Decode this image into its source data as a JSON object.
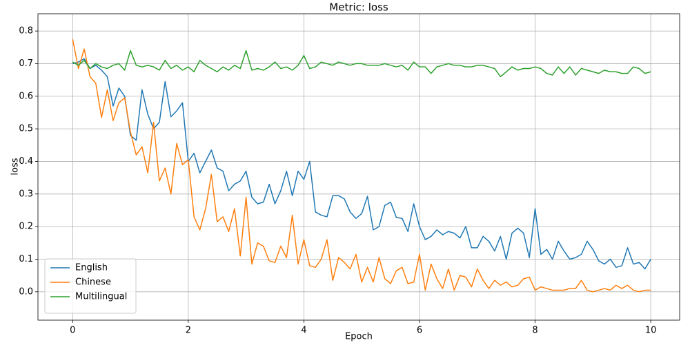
{
  "chart_data": {
    "type": "line",
    "title": "Metric: loss",
    "x_label": "Epoch",
    "y_label": "loss",
    "x": [
      0,
      0.1,
      0.2,
      0.3,
      0.4,
      0.5,
      0.6,
      0.7,
      0.8,
      0.9,
      1,
      1.1,
      1.2,
      1.3,
      1.4,
      1.5,
      1.6,
      1.7,
      1.8,
      1.9,
      2,
      2.1,
      2.2,
      2.3,
      2.4,
      2.5,
      2.6,
      2.7,
      2.8,
      2.9,
      3,
      3.1,
      3.2,
      3.3,
      3.4,
      3.5,
      3.6,
      3.7,
      3.8,
      3.9,
      4,
      4.1,
      4.2,
      4.3,
      4.4,
      4.5,
      4.6,
      4.7,
      4.8,
      4.9,
      5,
      5.1,
      5.2,
      5.3,
      5.4,
      5.5,
      5.6,
      5.7,
      5.8,
      5.9,
      6,
      6.1,
      6.2,
      6.3,
      6.4,
      6.5,
      6.6,
      6.7,
      6.8,
      6.9,
      7,
      7.1,
      7.2,
      7.3,
      7.4,
      7.5,
      7.6,
      7.7,
      7.8,
      7.9,
      8,
      8.1,
      8.2,
      8.3,
      8.4,
      8.5,
      8.6,
      8.7,
      8.8,
      8.9,
      9,
      9.1,
      9.2,
      9.3,
      9.4,
      9.5,
      9.6,
      9.7,
      9.8,
      9.9,
      10
    ],
    "series": [
      {
        "name": "English",
        "color": "#1f77b4",
        "values": [
          0.7,
          0.705,
          0.715,
          0.685,
          0.695,
          0.68,
          0.66,
          0.57,
          0.625,
          0.6,
          0.48,
          0.465,
          0.62,
          0.545,
          0.5,
          0.52,
          0.645,
          0.537,
          0.555,
          0.58,
          0.4,
          0.425,
          0.365,
          0.4,
          0.435,
          0.38,
          0.37,
          0.31,
          0.33,
          0.34,
          0.37,
          0.29,
          0.27,
          0.275,
          0.33,
          0.27,
          0.31,
          0.37,
          0.295,
          0.37,
          0.345,
          0.4,
          0.245,
          0.235,
          0.23,
          0.295,
          0.295,
          0.285,
          0.245,
          0.225,
          0.24,
          0.293,
          0.19,
          0.2,
          0.265,
          0.275,
          0.228,
          0.225,
          0.185,
          0.27,
          0.2,
          0.16,
          0.17,
          0.19,
          0.175,
          0.185,
          0.18,
          0.165,
          0.2,
          0.135,
          0.135,
          0.17,
          0.155,
          0.125,
          0.17,
          0.1,
          0.18,
          0.195,
          0.18,
          0.105,
          0.255,
          0.115,
          0.13,
          0.1,
          0.155,
          0.125,
          0.1,
          0.105,
          0.115,
          0.155,
          0.13,
          0.095,
          0.085,
          0.1,
          0.075,
          0.08,
          0.135,
          0.085,
          0.09,
          0.07,
          0.1
        ]
      },
      {
        "name": "Chinese",
        "color": "#ff7f0e",
        "values": [
          0.775,
          0.685,
          0.745,
          0.66,
          0.64,
          0.535,
          0.62,
          0.525,
          0.58,
          0.595,
          0.49,
          0.42,
          0.445,
          0.365,
          0.52,
          0.34,
          0.38,
          0.3,
          0.455,
          0.39,
          0.405,
          0.23,
          0.19,
          0.255,
          0.36,
          0.215,
          0.23,
          0.185,
          0.255,
          0.11,
          0.29,
          0.085,
          0.15,
          0.14,
          0.095,
          0.09,
          0.14,
          0.105,
          0.235,
          0.085,
          0.16,
          0.08,
          0.075,
          0.1,
          0.16,
          0.035,
          0.105,
          0.09,
          0.07,
          0.115,
          0.03,
          0.075,
          0.03,
          0.105,
          0.04,
          0.025,
          0.065,
          0.075,
          0.025,
          0.03,
          0.115,
          0.005,
          0.085,
          0.04,
          0.01,
          0.07,
          0.005,
          0.05,
          0.045,
          0.015,
          0.07,
          0.035,
          0.01,
          0.035,
          0.02,
          0.03,
          0.015,
          0.02,
          0.04,
          0.045,
          0.005,
          0.015,
          0.01,
          0.005,
          0.005,
          0.005,
          0.01,
          0.01,
          0.035,
          0.005,
          0.0,
          0.005,
          0.01,
          0.005,
          0.02,
          0.01,
          0.02,
          0.005,
          0.0,
          0.005,
          0.005
        ]
      },
      {
        "name": "Multilingual",
        "color": "#2ca02c",
        "values": [
          0.705,
          0.695,
          0.71,
          0.685,
          0.7,
          0.69,
          0.685,
          0.695,
          0.7,
          0.68,
          0.74,
          0.695,
          0.69,
          0.695,
          0.69,
          0.68,
          0.71,
          0.685,
          0.695,
          0.68,
          0.69,
          0.675,
          0.71,
          0.695,
          0.685,
          0.675,
          0.69,
          0.68,
          0.695,
          0.685,
          0.74,
          0.68,
          0.685,
          0.68,
          0.69,
          0.705,
          0.685,
          0.69,
          0.68,
          0.695,
          0.725,
          0.685,
          0.69,
          0.705,
          0.7,
          0.695,
          0.705,
          0.7,
          0.695,
          0.7,
          0.7,
          0.695,
          0.695,
          0.695,
          0.7,
          0.695,
          0.69,
          0.695,
          0.68,
          0.705,
          0.69,
          0.69,
          0.67,
          0.69,
          0.695,
          0.7,
          0.695,
          0.695,
          0.69,
          0.69,
          0.695,
          0.695,
          0.69,
          0.685,
          0.66,
          0.675,
          0.69,
          0.68,
          0.685,
          0.685,
          0.69,
          0.685,
          0.67,
          0.665,
          0.69,
          0.67,
          0.69,
          0.665,
          0.685,
          0.68,
          0.675,
          0.67,
          0.68,
          0.675,
          0.675,
          0.67,
          0.67,
          0.69,
          0.685,
          0.67,
          0.675
        ]
      }
    ],
    "xlim": [
      -0.6,
      10.5
    ],
    "ylim": [
      -0.087,
      0.853
    ],
    "xticks": [
      0,
      2,
      4,
      6,
      8,
      10
    ],
    "yticks": [
      {
        "value": 0,
        "label": "0.0"
      },
      0.1,
      0.2,
      0.3,
      0.4,
      0.5,
      0.6,
      0.7,
      0.8
    ],
    "grid": true,
    "legend": "lower left"
  }
}
